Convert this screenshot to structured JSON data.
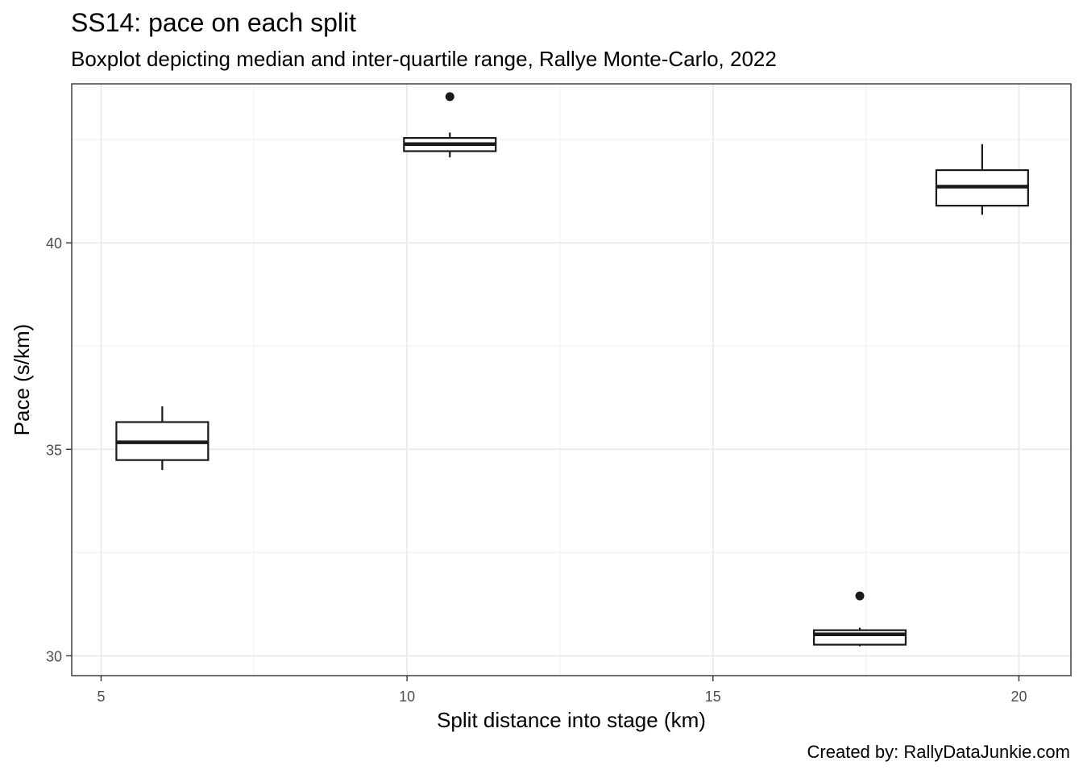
{
  "chart_data": {
    "type": "boxplot",
    "title": "SS14: pace on each split",
    "subtitle": "Boxplot depicting median and inter-quartile range, Rallye Monte-Carlo, 2022",
    "caption": "Created by: RallyDataJunkie.com",
    "xlabel": "Split distance into stage (km)",
    "ylabel": "Pace (s/km)",
    "xlim": [
      4.52,
      20.85
    ],
    "ylim": [
      29.52,
      43.85
    ],
    "x_ticks": [
      5,
      10,
      15,
      20
    ],
    "y_ticks": [
      30,
      35,
      40
    ],
    "grid": true,
    "boxes": [
      {
        "x": 6.0,
        "lower_whisker": 34.5,
        "q1": 34.74,
        "median": 35.17,
        "q3": 35.66,
        "upper_whisker": 36.04,
        "outliers": []
      },
      {
        "x": 10.7,
        "lower_whisker": 42.07,
        "q1": 42.22,
        "median": 42.39,
        "q3": 42.54,
        "upper_whisker": 42.67,
        "outliers": [
          43.54
        ]
      },
      {
        "x": 17.4,
        "lower_whisker": 30.23,
        "q1": 30.27,
        "median": 30.52,
        "q3": 30.62,
        "upper_whisker": 30.68,
        "outliers": [
          31.45
        ]
      },
      {
        "x": 19.4,
        "lower_whisker": 40.68,
        "q1": 40.9,
        "median": 41.36,
        "q3": 41.76,
        "upper_whisker": 42.39,
        "outliers": []
      }
    ],
    "box_width": 1.5,
    "colors": {
      "box_stroke": "#1a1a1a",
      "box_fill": "#ffffff",
      "grid_major": "#ebebeb",
      "grid_minor": "#f2f2f2",
      "panel_border": "#333333"
    }
  }
}
